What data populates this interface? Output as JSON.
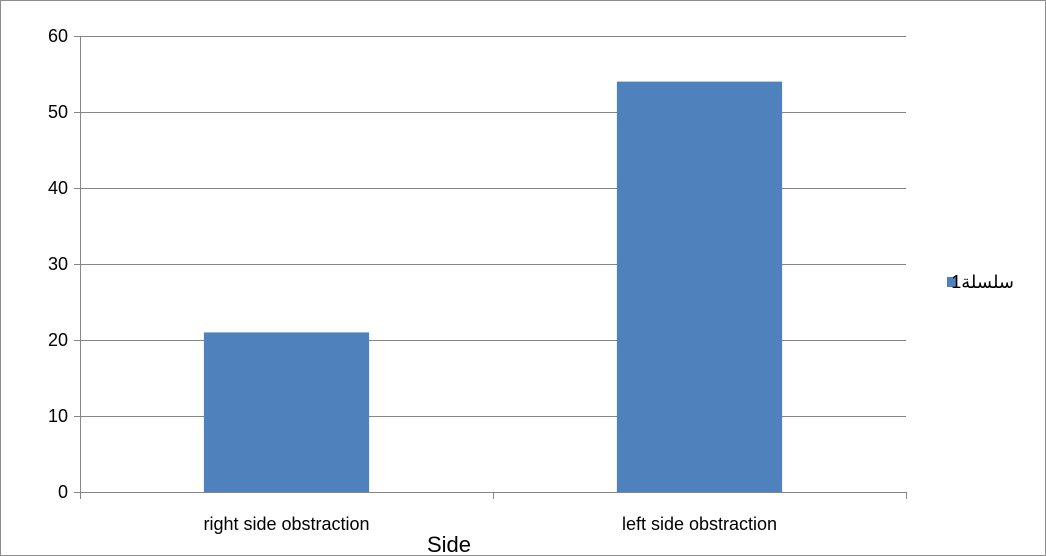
{
  "chart_data": {
    "type": "bar",
    "title": "",
    "xlabel": "Side",
    "ylabel": "",
    "categories": [
      "right side obstraction",
      "left side obstraction"
    ],
    "series": [
      {
        "name": "سلسلة1",
        "values": [
          21,
          54
        ],
        "color": "#4F81BD"
      }
    ],
    "ylim": [
      0,
      60
    ],
    "yticks": [
      0,
      10,
      20,
      30,
      40,
      50,
      60
    ],
    "grid": true,
    "legend": "right"
  }
}
